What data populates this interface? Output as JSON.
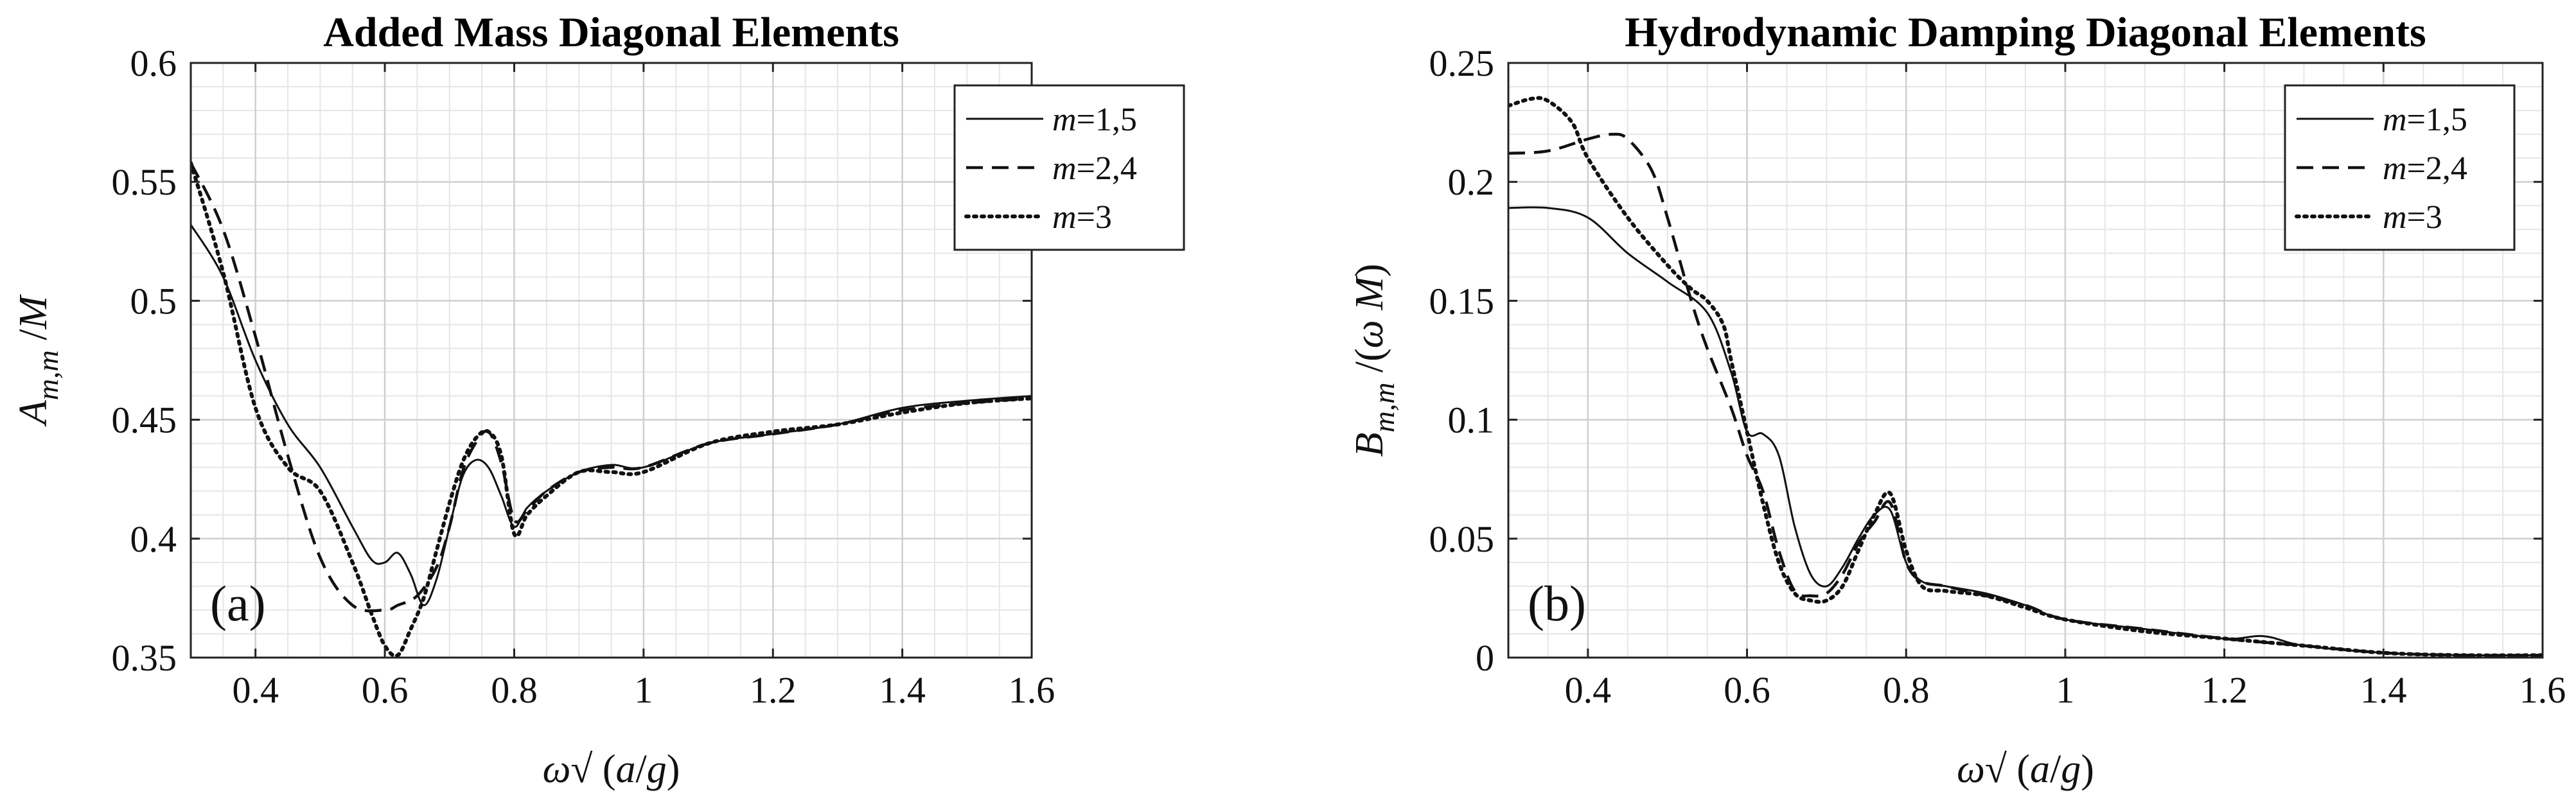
{
  "chart_data": [
    {
      "type": "line",
      "panel_label": "(a)",
      "title": "Added Mass Diagonal Elements",
      "xlabel_parts": {
        "omega": "ω",
        "sqrt": "√",
        "open": " (",
        "a": "a",
        "slash": "/",
        "g": "g",
        "close": ")"
      },
      "ylabel_parts": {
        "letter": "A",
        "sub": "m,m",
        "rest": " /",
        "M": "M"
      },
      "xlim": [
        0.3,
        1.6
      ],
      "ylim": [
        0.35,
        0.6
      ],
      "xticks": [
        0.4,
        0.6,
        0.8,
        1.0,
        1.2,
        1.4,
        1.6
      ],
      "xtick_labels": [
        "0.4",
        "0.6",
        "0.8",
        "1",
        "1.2",
        "1.4",
        "1.6"
      ],
      "yticks": [
        0.35,
        0.4,
        0.45,
        0.5,
        0.55,
        0.6
      ],
      "ytick_labels": [
        "0.35",
        "0.4",
        "0.45",
        "0.5",
        "0.55",
        "0.6"
      ],
      "minor_x_step": 0.05,
      "minor_y_step": 0.01,
      "grid": true,
      "legend_position": "top-right",
      "series": [
        {
          "name": "m=1,5",
          "legend_italic": "m",
          "legend_rest": "=1,5",
          "style": "solid",
          "x": [
            0.3,
            0.35,
            0.4,
            0.45,
            0.5,
            0.55,
            0.58,
            0.6,
            0.62,
            0.64,
            0.66,
            0.68,
            0.7,
            0.72,
            0.74,
            0.76,
            0.78,
            0.8,
            0.82,
            0.85,
            0.9,
            0.95,
            1.0,
            1.1,
            1.2,
            1.3,
            1.4,
            1.5,
            1.6
          ],
          "y": [
            0.532,
            0.51,
            0.475,
            0.448,
            0.43,
            0.405,
            0.391,
            0.39,
            0.394,
            0.385,
            0.372,
            0.383,
            0.405,
            0.426,
            0.433,
            0.43,
            0.418,
            0.405,
            0.413,
            0.42,
            0.428,
            0.431,
            0.43,
            0.44,
            0.444,
            0.448,
            0.455,
            0.458,
            0.46
          ]
        },
        {
          "name": "m=2,4",
          "legend_italic": "m",
          "legend_rest": "=2,4",
          "style": "dashed",
          "x": [
            0.3,
            0.35,
            0.4,
            0.45,
            0.5,
            0.55,
            0.6,
            0.62,
            0.65,
            0.68,
            0.7,
            0.72,
            0.74,
            0.76,
            0.78,
            0.8,
            0.82,
            0.85,
            0.9,
            0.95,
            1.0,
            1.1,
            1.2,
            1.3,
            1.4,
            1.5,
            1.6
          ],
          "y": [
            0.558,
            0.53,
            0.485,
            0.435,
            0.392,
            0.372,
            0.37,
            0.372,
            0.376,
            0.388,
            0.405,
            0.428,
            0.44,
            0.445,
            0.432,
            0.408,
            0.412,
            0.42,
            0.428,
            0.43,
            0.43,
            0.44,
            0.444,
            0.448,
            0.454,
            0.457,
            0.459
          ]
        },
        {
          "name": "m=3",
          "legend_italic": "m",
          "legend_rest": "=3",
          "style": "dotted",
          "x": [
            0.3,
            0.35,
            0.4,
            0.45,
            0.5,
            0.55,
            0.58,
            0.6,
            0.62,
            0.64,
            0.66,
            0.68,
            0.7,
            0.72,
            0.74,
            0.76,
            0.78,
            0.8,
            0.82,
            0.85,
            0.9,
            0.95,
            1.0,
            1.1,
            1.2,
            1.3,
            1.4,
            1.5,
            1.6
          ],
          "y": [
            0.558,
            0.512,
            0.455,
            0.43,
            0.42,
            0.39,
            0.368,
            0.355,
            0.351,
            0.362,
            0.375,
            0.395,
            0.415,
            0.432,
            0.442,
            0.445,
            0.435,
            0.402,
            0.41,
            0.418,
            0.428,
            0.428,
            0.428,
            0.44,
            0.445,
            0.448,
            0.453,
            0.457,
            0.459
          ]
        }
      ]
    },
    {
      "type": "line",
      "panel_label": "(b)",
      "title": "Hydrodynamic Damping Diagonal Elements",
      "xlabel_parts": {
        "omega": "ω",
        "sqrt": "√",
        "open": " (",
        "a": "a",
        "slash": "/",
        "g": "g",
        "close": ")"
      },
      "ylabel_parts": {
        "letter": "B",
        "sub": "m,m",
        "rest": " /(",
        "omega": "ω",
        "M": " M",
        "close": ")"
      },
      "xlim": [
        0.3,
        1.6
      ],
      "ylim": [
        0,
        0.25
      ],
      "xticks": [
        0.4,
        0.6,
        0.8,
        1.0,
        1.2,
        1.4,
        1.6
      ],
      "xtick_labels": [
        "0.4",
        "0.6",
        "0.8",
        "1",
        "1.2",
        "1.4",
        "1.6"
      ],
      "yticks": [
        0,
        0.05,
        0.1,
        0.15,
        0.2,
        0.25
      ],
      "ytick_labels": [
        "0",
        "0.05",
        "0.1",
        "0.15",
        "0.2",
        "0.25"
      ],
      "minor_x_step": 0.05,
      "minor_y_step": 0.01,
      "grid": true,
      "legend_position": "top-right",
      "series": [
        {
          "name": "m=1,5",
          "legend_italic": "m",
          "legend_rest": "=1,5",
          "style": "solid",
          "x": [
            0.3,
            0.35,
            0.4,
            0.45,
            0.5,
            0.55,
            0.58,
            0.6,
            0.62,
            0.64,
            0.66,
            0.68,
            0.7,
            0.72,
            0.74,
            0.76,
            0.78,
            0.8,
            0.82,
            0.85,
            0.9,
            0.95,
            1.0,
            1.1,
            1.2,
            1.25,
            1.3,
            1.4,
            1.5,
            1.6
          ],
          "y": [
            0.189,
            0.189,
            0.185,
            0.17,
            0.158,
            0.145,
            0.12,
            0.095,
            0.094,
            0.085,
            0.055,
            0.035,
            0.03,
            0.038,
            0.05,
            0.06,
            0.062,
            0.04,
            0.032,
            0.03,
            0.027,
            0.022,
            0.016,
            0.012,
            0.008,
            0.009,
            0.005,
            0.002,
            0.001,
            0.001
          ]
        },
        {
          "name": "m=2,4",
          "legend_italic": "m",
          "legend_rest": "=2,4",
          "style": "dashed",
          "x": [
            0.3,
            0.35,
            0.4,
            0.43,
            0.45,
            0.48,
            0.5,
            0.53,
            0.55,
            0.58,
            0.6,
            0.62,
            0.64,
            0.66,
            0.68,
            0.7,
            0.72,
            0.74,
            0.76,
            0.78,
            0.8,
            0.82,
            0.85,
            0.9,
            0.95,
            1.0,
            1.1,
            1.2,
            1.3,
            1.4,
            1.5,
            1.6
          ],
          "y": [
            0.212,
            0.213,
            0.218,
            0.22,
            0.218,
            0.205,
            0.185,
            0.15,
            0.13,
            0.105,
            0.085,
            0.07,
            0.045,
            0.028,
            0.026,
            0.027,
            0.035,
            0.048,
            0.057,
            0.065,
            0.04,
            0.032,
            0.03,
            0.026,
            0.022,
            0.016,
            0.012,
            0.008,
            0.005,
            0.002,
            0.001,
            0.001
          ]
        },
        {
          "name": "m=3",
          "legend_italic": "m",
          "legend_rest": "=3",
          "style": "dotted",
          "x": [
            0.3,
            0.33,
            0.35,
            0.38,
            0.4,
            0.45,
            0.5,
            0.53,
            0.55,
            0.57,
            0.58,
            0.6,
            0.62,
            0.64,
            0.66,
            0.68,
            0.7,
            0.72,
            0.74,
            0.76,
            0.78,
            0.8,
            0.82,
            0.85,
            0.9,
            0.95,
            1.0,
            1.1,
            1.2,
            1.3,
            1.4,
            1.5,
            1.6
          ],
          "y": [
            0.232,
            0.235,
            0.234,
            0.225,
            0.21,
            0.185,
            0.165,
            0.155,
            0.15,
            0.14,
            0.125,
            0.095,
            0.065,
            0.04,
            0.027,
            0.024,
            0.024,
            0.03,
            0.045,
            0.06,
            0.069,
            0.045,
            0.03,
            0.028,
            0.026,
            0.021,
            0.016,
            0.011,
            0.008,
            0.005,
            0.002,
            0.001,
            0.001
          ]
        }
      ]
    }
  ]
}
